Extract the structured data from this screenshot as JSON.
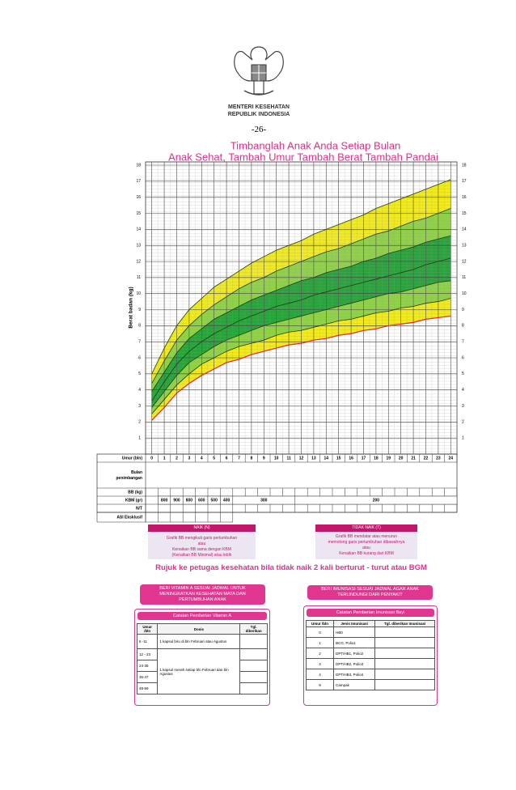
{
  "header": {
    "ministry": [
      "MENTERI KESEHATAN",
      "REPUBLIK INDONESIA"
    ],
    "page": "-26-"
  },
  "chart_data": {
    "type": "area",
    "title": "Timbanglah Anak Anda Setiap Bulan",
    "subtitle": "Anak Sehat, Tambah Umur  Tambah Berat  Tambah Pandai",
    "ylabel": "Berat badan (kg)",
    "xlabel": "Umur (bln)",
    "x": [
      0,
      1,
      2,
      3,
      4,
      5,
      6,
      7,
      8,
      9,
      10,
      11,
      12,
      13,
      14,
      15,
      16,
      17,
      18,
      19,
      20,
      21,
      22,
      23,
      24
    ],
    "xlim": [
      0,
      24
    ],
    "xticks": [
      0,
      1,
      2,
      3,
      4,
      5,
      6,
      7,
      8,
      9,
      10,
      11,
      12,
      13,
      14,
      15,
      16,
      17,
      18,
      19,
      20,
      21,
      22,
      23,
      24
    ],
    "ylim": [
      0,
      18
    ],
    "yticks": [
      1,
      2,
      3,
      4,
      5,
      6,
      7,
      8,
      9,
      10,
      11,
      12,
      13,
      14,
      15,
      16,
      17,
      18
    ],
    "grid": true,
    "band_colors": [
      "#f0ea1e",
      "#8fd246",
      "#27a43a",
      "#27a43a",
      "#8fd246",
      "#f0ea1e"
    ],
    "series": [
      {
        "color": "#e8202a",
        "values": [
          2.1,
          2.9,
          3.8,
          4.4,
          4.9,
          5.3,
          5.7,
          5.9,
          6.2,
          6.4,
          6.6,
          6.8,
          6.9,
          7.1,
          7.2,
          7.4,
          7.5,
          7.7,
          7.8,
          8.0,
          8.1,
          8.2,
          8.4,
          8.5,
          8.6
        ]
      },
      {
        "color": "#1d3d14",
        "values": [
          2.5,
          3.4,
          4.3,
          5.0,
          5.6,
          6.0,
          6.4,
          6.7,
          6.9,
          7.1,
          7.4,
          7.6,
          7.7,
          7.9,
          8.1,
          8.3,
          8.4,
          8.6,
          8.8,
          8.9,
          9.1,
          9.2,
          9.4,
          9.5,
          9.7
        ]
      },
      {
        "color": "#1d3d14",
        "values": [
          2.9,
          3.9,
          4.9,
          5.7,
          6.2,
          6.7,
          7.1,
          7.4,
          7.7,
          8.0,
          8.2,
          8.4,
          8.6,
          8.8,
          9.0,
          9.2,
          9.4,
          9.6,
          9.8,
          10.0,
          10.1,
          10.3,
          10.5,
          10.7,
          10.8
        ]
      },
      {
        "color": "#1d3d14",
        "values": [
          3.3,
          4.5,
          5.6,
          6.4,
          7.0,
          7.5,
          7.9,
          8.3,
          8.6,
          8.9,
          9.2,
          9.4,
          9.6,
          9.9,
          10.1,
          10.3,
          10.5,
          10.7,
          10.9,
          11.1,
          11.3,
          11.5,
          11.8,
          12.0,
          12.2
        ]
      },
      {
        "color": "#1d3d14",
        "values": [
          3.9,
          5.1,
          6.3,
          7.2,
          7.8,
          8.4,
          8.8,
          9.2,
          9.6,
          9.9,
          10.2,
          10.5,
          10.8,
          11.0,
          11.3,
          11.5,
          11.7,
          12.0,
          12.2,
          12.5,
          12.7,
          12.9,
          13.2,
          13.4,
          13.6
        ]
      },
      {
        "color": "#1d3d14",
        "values": [
          4.4,
          5.8,
          7.1,
          8.0,
          8.7,
          9.3,
          9.8,
          10.3,
          10.7,
          11.0,
          11.4,
          11.7,
          12.0,
          12.3,
          12.6,
          12.8,
          13.1,
          13.4,
          13.7,
          13.9,
          14.2,
          14.5,
          14.7,
          15.0,
          15.3
        ]
      },
      {
        "color": "#1d3d14",
        "values": [
          5.0,
          6.6,
          8.0,
          9.0,
          9.7,
          10.4,
          10.9,
          11.4,
          11.9,
          12.3,
          12.7,
          13.0,
          13.3,
          13.7,
          14.0,
          14.3,
          14.6,
          14.9,
          15.3,
          15.6,
          15.9,
          16.2,
          16.5,
          16.8,
          17.1
        ]
      }
    ]
  },
  "kms_table": {
    "row_labels": [
      "Bulan penimbangan",
      "BB (kg)",
      "KBM (gr)",
      "N/T",
      "ASI Eksklusif"
    ],
    "kbm": [
      {
        "text": "800",
        "span": 1
      },
      {
        "text": "900",
        "span": 1
      },
      {
        "text": "800",
        "span": 1
      },
      {
        "text": "600",
        "span": 1
      },
      {
        "text": "500",
        "span": 1
      },
      {
        "text": "400",
        "span": 1
      },
      {
        "text": "300",
        "span": 5
      },
      {
        "text": "200",
        "span": 13
      }
    ]
  },
  "status": [
    {
      "title": "NAIK (N)",
      "lines": [
        "Grafik BB mengikuti garis pertumbuhan",
        "atau",
        "Kenaikan BB sama dengan KBM",
        "(Kenaikan BB Minimal) atau lebih"
      ]
    },
    {
      "title": "TIDAK NAIK (T)",
      "lines": [
        "Grafik BB mendatar atau menurun",
        "memotong garis pertumbuhan dibawahnya",
        "atau",
        "Kenaikan BB kurang dari KBM"
      ]
    }
  ],
  "referral": "Rujuk ke petugas kesehatan bila tidak naik 2 kali berturut - turut atau BGM",
  "vitamin_a": {
    "caption": "BERI VITAMIN A SESUAI JADWAL UNTUK MENINGKATKAN KESEHATAN MATA DAN PERTUMBUHAN ANAK",
    "title": "Catatan Pemberian Vitamin A",
    "headers": [
      "Umur /bln",
      "Dosis",
      "Tgl. diberikan"
    ],
    "rows": [
      [
        "6 -11",
        "1 kapsul biru di bln Februari atau Agustus"
      ],
      [
        "12 - 23",
        "1 kapsul merah setiap bln Februari dan bln Agustus"
      ],
      [
        "24-35"
      ],
      [
        "36-47"
      ],
      [
        "48-59"
      ]
    ]
  },
  "immunization": {
    "caption": "BERI IMUNISASI SESUAI JADWAL AGAR ANAK TERLINDUNGI DARI PENYAKIT",
    "title": "Catatan Pemberian Imunisasi Bayi",
    "headers": [
      "Umur /bln",
      "Jenis Imunisasi",
      "Tgl. diberikan Imunisasi"
    ],
    "rows": [
      [
        "0",
        "HB0"
      ],
      [
        "1",
        "BCG, Polio1"
      ],
      [
        "2",
        "DPT/HB1, Polio2"
      ],
      [
        "3",
        "DPT/HB2, Polio3"
      ],
      [
        "4",
        "DPT/HB3, Polio4"
      ],
      [
        "9",
        "Campak"
      ]
    ]
  }
}
